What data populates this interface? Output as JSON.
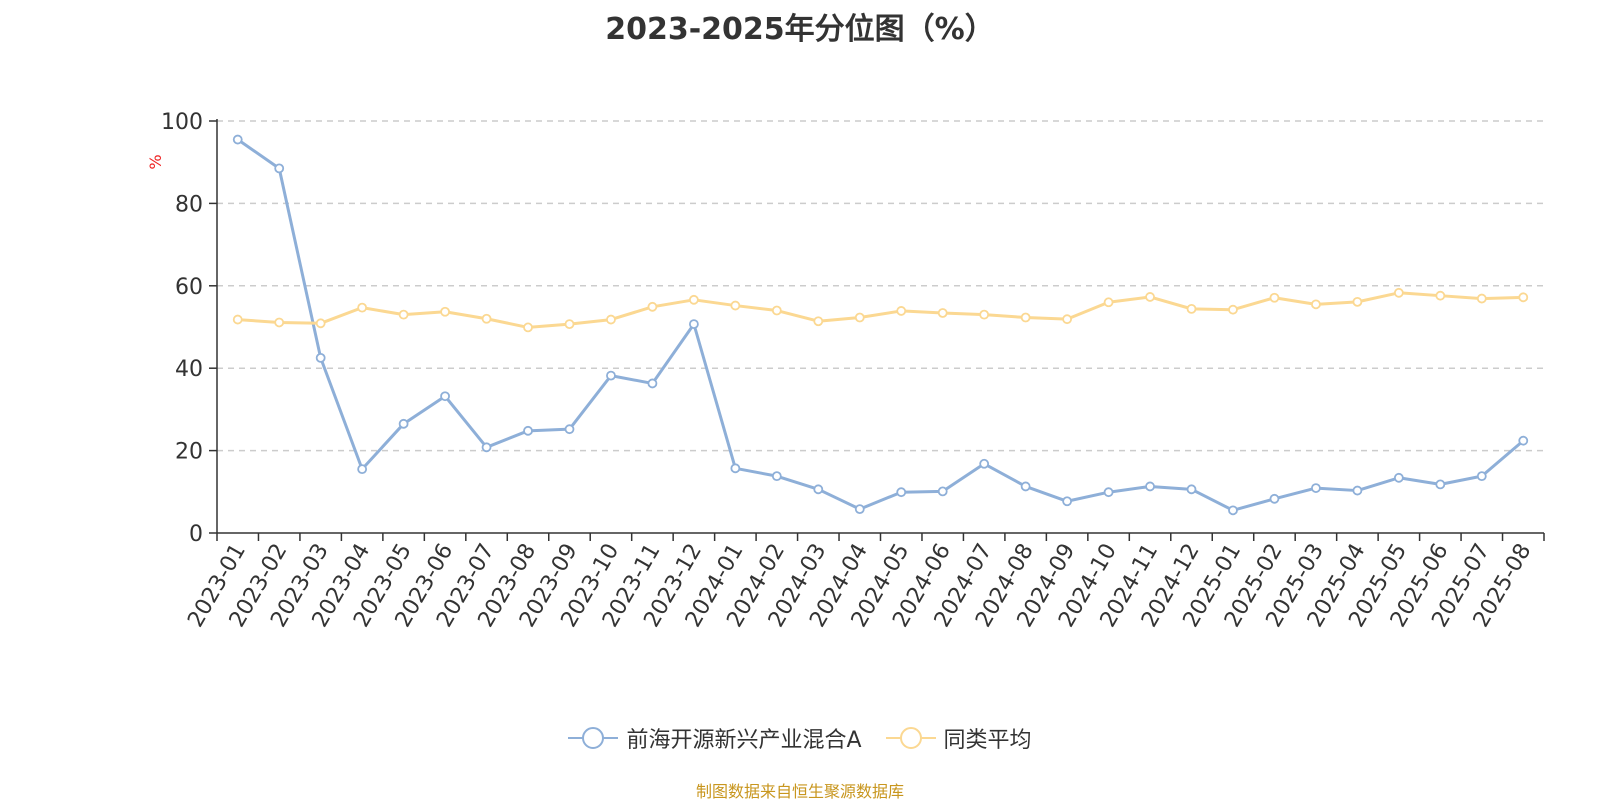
{
  "source": "制图数据来自恒生聚源数据库",
  "chart_data": {
    "type": "line",
    "title": "2023-2025年分位图（%）",
    "ylabel": "%",
    "ylim": [
      0,
      100
    ],
    "yticks": [
      "0",
      "20",
      "40",
      "60",
      "80",
      "100"
    ],
    "grid": true,
    "legend_position": "bottom",
    "categories": [
      "2023-01",
      "2023-02",
      "2023-03",
      "2023-04",
      "2023-05",
      "2023-06",
      "2023-07",
      "2023-08",
      "2023-09",
      "2023-10",
      "2023-11",
      "2023-12",
      "2024-01",
      "2024-02",
      "2024-03",
      "2024-04",
      "2024-05",
      "2024-06",
      "2024-07",
      "2024-08",
      "2024-09",
      "2024-10",
      "2024-11",
      "2024-12",
      "2025-01",
      "2025-02",
      "2025-03",
      "2025-04",
      "2025-05",
      "2025-06",
      "2025-07",
      "2025-08"
    ],
    "series": [
      {
        "name": "前海开源新兴产业混合A",
        "color": "#8eafd8",
        "values": [
          95.5,
          88.5,
          42.5,
          15.5,
          26.5,
          33.2,
          20.8,
          24.8,
          25.2,
          38.2,
          36.3,
          50.7,
          15.7,
          13.8,
          10.6,
          5.8,
          9.9,
          10.1,
          16.8,
          11.3,
          7.7,
          9.9,
          11.3,
          10.6,
          5.5,
          8.3,
          10.9,
          10.3,
          13.4,
          11.8,
          13.8,
          22.4
        ]
      },
      {
        "name": "同类平均",
        "color": "#fbd892",
        "values": [
          51.8,
          51.1,
          50.9,
          54.7,
          53.0,
          53.7,
          52.0,
          49.9,
          50.7,
          51.8,
          54.9,
          56.6,
          55.2,
          54.0,
          51.4,
          52.3,
          53.9,
          53.4,
          53.0,
          52.3,
          51.9,
          56.0,
          57.3,
          54.4,
          54.2,
          57.1,
          55.5,
          56.1,
          58.3,
          57.6,
          56.9,
          57.2
        ]
      }
    ]
  }
}
